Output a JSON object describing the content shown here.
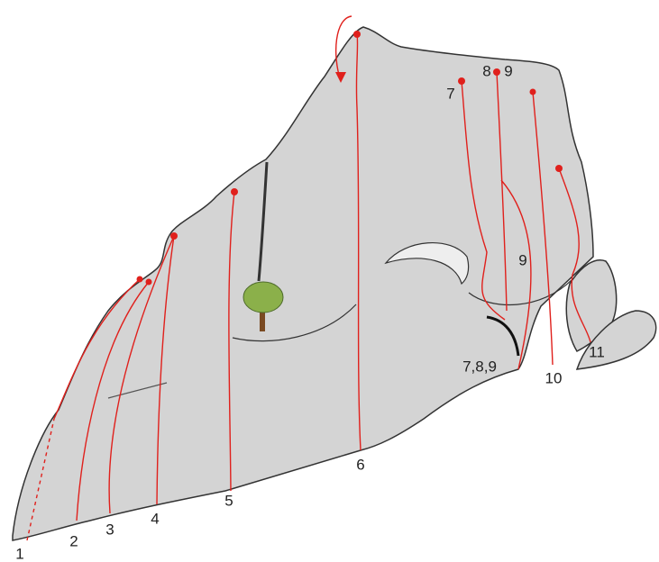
{
  "labels": [
    "1",
    "2",
    "3",
    "4",
    "5",
    "6",
    "7",
    "8",
    "9",
    "9",
    "10",
    "11",
    "7,8,9"
  ]
}
